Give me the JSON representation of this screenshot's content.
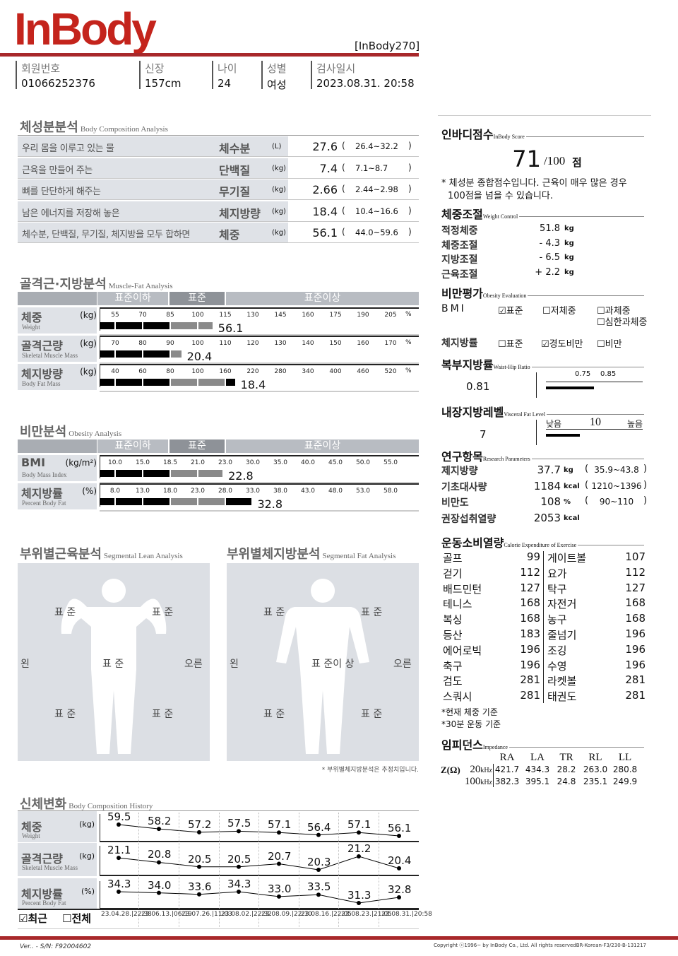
{
  "header": {
    "logo": "InBody",
    "model": "[InBody270]",
    "fields": [
      {
        "label": "회원번호",
        "value": "01066252376"
      },
      {
        "label": "신장",
        "value": "157cm"
      },
      {
        "label": "나이",
        "value": "24"
      },
      {
        "label": "성별",
        "value": "여성"
      },
      {
        "label": "검사일시",
        "value": "2023.08.31. 20:58"
      }
    ]
  },
  "body_composition": {
    "title": "체성분분석",
    "subtitle": "Body Composition Analysis",
    "rows": [
      {
        "desc": "우리 몸을 이루고 있는 물",
        "name": "체수분",
        "unit": "(L)",
        "value": "27.6",
        "range": "26.4~32.2"
      },
      {
        "desc": "근육을 만들어 주는",
        "name": "단백질",
        "unit": "(kg)",
        "value": "7.4",
        "range": "7.1~8.7"
      },
      {
        "desc": "뼈를 단단하게 해주는",
        "name": "무기질",
        "unit": "(kg)",
        "value": "2.66",
        "range": "2.44~2.98"
      },
      {
        "desc": "남은 에너지를 저장해 놓은",
        "name": "체지방량",
        "unit": "(kg)",
        "value": "18.4",
        "range": "10.4~16.6"
      },
      {
        "desc": "체수분, 단백질, 무기질, 체지방을 모두 합하면",
        "name": "체중",
        "unit": "(kg)",
        "value": "56.1",
        "range": "44.0~59.6"
      }
    ]
  },
  "levels": {
    "below": "표준이하",
    "normal": "표준",
    "above": "표준이상"
  },
  "muscle_fat": {
    "title": "골격근·지방분석",
    "subtitle": "Muscle-Fat Analysis",
    "rows": [
      {
        "name": "체중",
        "sub": "Weight",
        "unit": "(kg)",
        "ticks": [
          55,
          70,
          85,
          100,
          115,
          130,
          145,
          160,
          175,
          190,
          205
        ],
        "pct_unit": "%",
        "level": 108,
        "value": "56.1"
      },
      {
        "name": "골격근량",
        "sub": "Skeletal Muscle Mass",
        "unit": "(kg)",
        "ticks": [
          70,
          80,
          90,
          100,
          110,
          120,
          130,
          140,
          150,
          160,
          170
        ],
        "pct_unit": "%",
        "level": 94,
        "value": "20.4"
      },
      {
        "name": "체지방량",
        "sub": "Body Fat Mass",
        "unit": "(kg)",
        "ticks": [
          40,
          60,
          80,
          100,
          160,
          220,
          280,
          340,
          400,
          460,
          520
        ],
        "pct_unit": "%",
        "level": 181,
        "value": "18.4"
      }
    ]
  },
  "obesity": {
    "title": "비만분석",
    "subtitle": "Obesity Analysis",
    "rows": [
      {
        "name": "BMI",
        "sub": "Body Mass Index",
        "unit": "(kg/m²)",
        "ticks": [
          "10.0",
          "15.0",
          "18.5",
          "21.0",
          "23.0",
          "30.0",
          "35.0",
          "40.0",
          "45.0",
          "50.0",
          "55.0"
        ],
        "pct_unit": "",
        "level": 22.8,
        "value": "22.8"
      },
      {
        "name": "체지방률",
        "sub": "Percent Body Fat",
        "unit": "(%)",
        "ticks": [
          "8.0",
          "13.0",
          "18.0",
          "23.0",
          "28.0",
          "33.0",
          "38.0",
          "43.0",
          "48.0",
          "53.0",
          "58.0"
        ],
        "pct_unit": "",
        "level": 32.8,
        "value": "32.8"
      }
    ]
  },
  "segmental_lean": {
    "title": "부위별근육분석",
    "subtitle": "Segmental Lean Analysis",
    "left": "왼",
    "right": "오른",
    "left_arm": "표 준",
    "right_arm": "표 준",
    "trunk": "표 준",
    "left_leg": "표 준",
    "right_leg": "표 준"
  },
  "segmental_fat": {
    "title": "부위별체지방분석",
    "subtitle": "Segmental Fat Analysis",
    "left": "왼",
    "right": "오른",
    "left_arm": "표 준",
    "right_arm": "표 준",
    "trunk": "표 준이 상",
    "left_leg": "표 준",
    "right_leg": "표 준",
    "note": "* 부위별체지방분석은 추정치입니다."
  },
  "history": {
    "title": "신체변화",
    "subtitle": "Body Composition History",
    "dates": [
      "23.04.28.|22:38",
      "23.06.13.|06:19",
      "23.07.26.|11:03",
      "23.08.02.|22:32",
      "23.08.09.|22:10",
      "23.08.16.|22:05",
      "23.08.23.|21:05",
      "23.08.31.|20:58"
    ],
    "rows": [
      {
        "name": "체중",
        "sub": "Weight",
        "unit": "(kg)",
        "values": [
          59.5,
          58.2,
          57.2,
          57.5,
          57.1,
          56.4,
          57.1,
          56.1
        ],
        "labels": [
          "59.5",
          "58.2",
          "57.2",
          "57.5",
          "57.1",
          "56.4",
          "57.1",
          "56.1"
        ]
      },
      {
        "name": "골격근량",
        "sub": "Skeletal Muscle Mass",
        "unit": "(kg)",
        "values": [
          21.1,
          20.8,
          20.5,
          20.5,
          20.7,
          20.3,
          21.2,
          20.4
        ],
        "labels": [
          "21.1",
          "20.8",
          "20.5",
          "20.5",
          "20.7",
          "20.3",
          "21.2",
          "20.4"
        ]
      },
      {
        "name": "체지방률",
        "sub": "Percent Body Fat",
        "unit": "(%)",
        "values": [
          34.3,
          34.0,
          33.6,
          34.3,
          33.0,
          33.5,
          31.3,
          32.8
        ],
        "labels": [
          "34.3",
          "34.0",
          "33.6",
          "34.3",
          "33.0",
          "33.5",
          "31.3",
          "32.8"
        ]
      }
    ],
    "recent": "최근",
    "all": "전체",
    "recent_checked": true,
    "all_checked": false
  },
  "score": {
    "title": "인바디점수",
    "subtitle": "InBody Score",
    "value": "71",
    "max": "/100",
    "unit": "점",
    "note1": "* 체성분 종합점수입니다. 근육이 매우 많은 경우",
    "note2": "100점을 넘을 수 있습니다."
  },
  "weight_control": {
    "title": "체중조절",
    "subtitle": "Weight Control",
    "rows": [
      {
        "label": "적정체중",
        "value": "51.8",
        "unit": "kg"
      },
      {
        "label": "체중조절",
        "value": "- 4.3",
        "unit": "kg"
      },
      {
        "label": "지방조절",
        "value": "- 6.5",
        "unit": "kg"
      },
      {
        "label": "근육조절",
        "value": "+ 2.2",
        "unit": "kg"
      }
    ]
  },
  "obesity_eval": {
    "title": "비만평가",
    "subtitle": "Obesity Evaluation",
    "bmi_label": "BMI",
    "bmi_options": [
      {
        "label": "표준",
        "checked": true
      },
      {
        "label": "저체중",
        "checked": false
      },
      {
        "label": "과체중",
        "checked": false
      },
      {
        "label": "심한과체중",
        "checked": false
      }
    ],
    "pbf_label": "체지방률",
    "pbf_options": [
      {
        "label": "표준",
        "checked": false
      },
      {
        "label": "경도비만",
        "checked": true
      },
      {
        "label": "비만",
        "checked": false
      }
    ]
  },
  "whr": {
    "title": "복부지방률",
    "subtitle": "Waist-Hip Ratio",
    "value": "0.81",
    "level": 0.81,
    "tick1": "0.75",
    "tick2": "0.85"
  },
  "visceral": {
    "title": "내장지방레벨",
    "subtitle": "Visceral Fat Level",
    "value": "7",
    "level": 7,
    "low": "낮음",
    "mid": "10",
    "high": "높음"
  },
  "research": {
    "title": "연구항목",
    "subtitle": "Research Parameters",
    "rows": [
      {
        "label": "제지방량",
        "value": "37.7",
        "unit": "kg",
        "range": "35.9~43.8"
      },
      {
        "label": "기초대사량",
        "value": "1184",
        "unit": "kcal",
        "range": "1210~1396"
      },
      {
        "label": "비만도",
        "value": "108",
        "unit": "%",
        "range": "90~110"
      },
      {
        "label": "권장섭취열량",
        "value": "2053",
        "unit": "kcal",
        "range": ""
      }
    ]
  },
  "calories": {
    "title": "운동소비열량",
    "subtitle": "Calorie Expenditure of Exercise",
    "rows": [
      [
        "골프",
        "99",
        "게이트볼",
        "107"
      ],
      [
        "걷기",
        "112",
        "요가",
        "112"
      ],
      [
        "배드민턴",
        "127",
        "탁구",
        "127"
      ],
      [
        "테니스",
        "168",
        "자전거",
        "168"
      ],
      [
        "복싱",
        "168",
        "농구",
        "168"
      ],
      [
        "등산",
        "183",
        "줄넘기",
        "196"
      ],
      [
        "에어로빅",
        "196",
        "조깅",
        "196"
      ],
      [
        "축구",
        "196",
        "수영",
        "196"
      ],
      [
        "검도",
        "281",
        "라켓볼",
        "281"
      ],
      [
        "스쿼시",
        "281",
        "태권도",
        "281"
      ]
    ],
    "note1": "*현재 체중 기준",
    "note2": "*30분 운동 기준"
  },
  "impedance": {
    "title": "임피던스",
    "subtitle": "Impedance",
    "z_label": "Z(Ω)",
    "cols": [
      "RA",
      "LA",
      "TR",
      "RL",
      "LL"
    ],
    "rows": [
      {
        "freq": "20",
        "unit": "kHz",
        "values": [
          "421.7",
          "434.3",
          "28.2",
          "263.0",
          "280.8"
        ]
      },
      {
        "freq": "100",
        "unit": "kHz",
        "values": [
          "382.3",
          "395.1",
          "24.8",
          "235.1",
          "249.9"
        ]
      }
    ]
  },
  "footer": {
    "serial": "Ver.. - S/N: F92004602",
    "copyright": "Copyright ⓒ1996~ by InBody Co., Ltd. All rights reservedBR-Korean-F3/230-B-131217"
  },
  "colors": {
    "brand": "#c4241c",
    "panel": "#dcdfe4",
    "bar_gray": "#8a8a8a",
    "footer_line": "#a8282a"
  }
}
